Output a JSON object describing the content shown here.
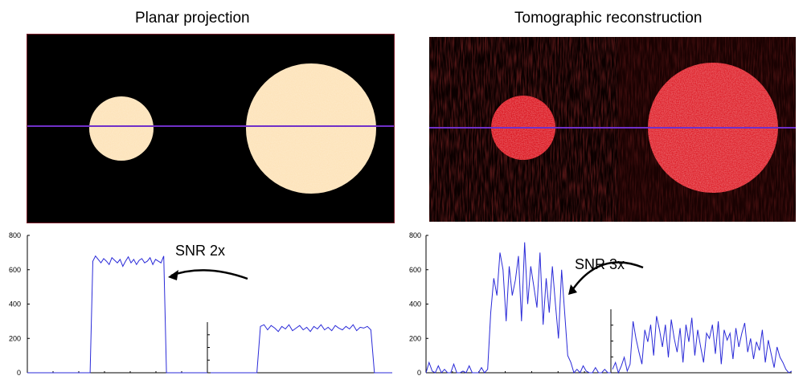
{
  "figure": {
    "left_title": "Planar projection",
    "right_title": "Tomographic reconstruction",
    "left_annotation": "SNR 2x",
    "right_annotation": "SNR 3x",
    "colors": {
      "planar_disc": "#fde2b8",
      "recon_disc": "#e0141c",
      "profile_line": "#7030c8",
      "trace": "#2a2ad8"
    }
  },
  "chart_data": [
    {
      "type": "line",
      "title": "Planar projection",
      "panel": "left",
      "annotation": "SNR 2x",
      "ylim": [
        0,
        800
      ],
      "yticks": [
        "0",
        "200",
        "400",
        "600",
        "800"
      ],
      "grid": false,
      "series": [
        {
          "values": [
            0,
            0,
            0,
            0,
            0,
            0,
            0,
            0,
            0,
            0,
            0,
            0,
            0,
            0,
            0,
            0,
            0,
            0,
            0,
            0,
            0,
            0,
            0,
            0,
            650,
            680,
            660,
            640,
            665,
            650,
            630,
            670,
            655,
            640,
            660,
            620,
            650,
            675,
            640,
            660,
            630,
            655,
            665,
            640,
            650,
            670,
            630,
            660,
            650,
            640,
            680,
            0,
            0,
            0,
            0,
            0,
            0,
            0,
            0,
            0,
            0,
            0,
            0,
            0,
            0,
            0,
            0
          ]
        },
        {
          "values": [
            0,
            0,
            0,
            0,
            0,
            0,
            0,
            0,
            0,
            0,
            0,
            0,
            0,
            0,
            270,
            280,
            250,
            275,
            260,
            240,
            270,
            255,
            280,
            245,
            260,
            275,
            250,
            265,
            240,
            270,
            255,
            280,
            250,
            265,
            245,
            275,
            260,
            250,
            270,
            255,
            280,
            245,
            265,
            260,
            270,
            250,
            0,
            0,
            0,
            0,
            0,
            0
          ]
        }
      ]
    },
    {
      "type": "line",
      "title": "Tomographic reconstruction",
      "panel": "right",
      "annotation": "SNR 3x",
      "ylim": [
        0,
        800
      ],
      "yticks": [
        "0",
        "200",
        "400",
        "600",
        "800"
      ],
      "grid": false,
      "series": [
        {
          "values": [
            0,
            60,
            10,
            0,
            40,
            0,
            20,
            0,
            0,
            50,
            0,
            0,
            10,
            0,
            40,
            0,
            0,
            0,
            30,
            0,
            20,
            350,
            550,
            450,
            700,
            600,
            300,
            620,
            450,
            540,
            680,
            300,
            760,
            400,
            620,
            500,
            380,
            700,
            280,
            550,
            350,
            620,
            400,
            200,
            600,
            350,
            100,
            60,
            0,
            20,
            0,
            40,
            10,
            0,
            0,
            30,
            0,
            0,
            20,
            0,
            0
          ]
        },
        {
          "values": [
            20,
            60,
            0,
            40,
            90,
            10,
            50,
            300,
            200,
            120,
            50,
            250,
            180,
            280,
            100,
            330,
            250,
            150,
            280,
            90,
            310,
            200,
            120,
            260,
            60,
            280,
            180,
            320,
            100,
            250,
            150,
            60,
            230,
            200,
            280,
            110,
            300,
            50,
            250,
            190,
            230,
            80,
            260,
            150,
            230,
            290,
            120,
            200,
            80,
            180,
            130,
            250,
            60,
            190,
            110,
            30,
            150,
            90,
            60,
            20,
            0,
            10
          ]
        }
      ]
    }
  ]
}
